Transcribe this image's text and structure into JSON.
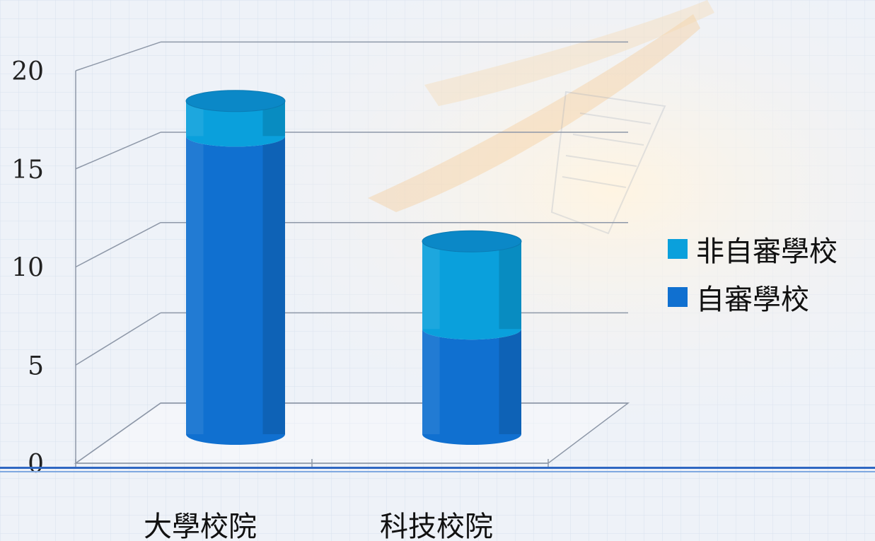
{
  "slide": {
    "title": "",
    "colors": {
      "background": "#eef2f8",
      "self_review": "#1070d0",
      "non_self_review": "#0aa0dc",
      "rule": "#2f67c2"
    }
  },
  "chart_data": {
    "type": "bar",
    "stacked": true,
    "three_d": true,
    "categories": [
      "大學校院",
      "科技校院"
    ],
    "series": [
      {
        "name": "自審學校",
        "values": [
          17,
          6
        ],
        "color": "#1070d0"
      },
      {
        "name": "非自審學校",
        "values": [
          2,
          5
        ],
        "color": "#0aa0dc"
      }
    ],
    "y_ticks": [
      0,
      5,
      10,
      15,
      20
    ],
    "ylim": [
      0,
      20
    ],
    "grid": true,
    "legend": "right",
    "xlabel": "",
    "ylabel": ""
  },
  "legend": {
    "items": [
      {
        "label": "非自審學校",
        "color": "#0aa0dc"
      },
      {
        "label": "自審學校",
        "color": "#1070d0"
      }
    ]
  }
}
